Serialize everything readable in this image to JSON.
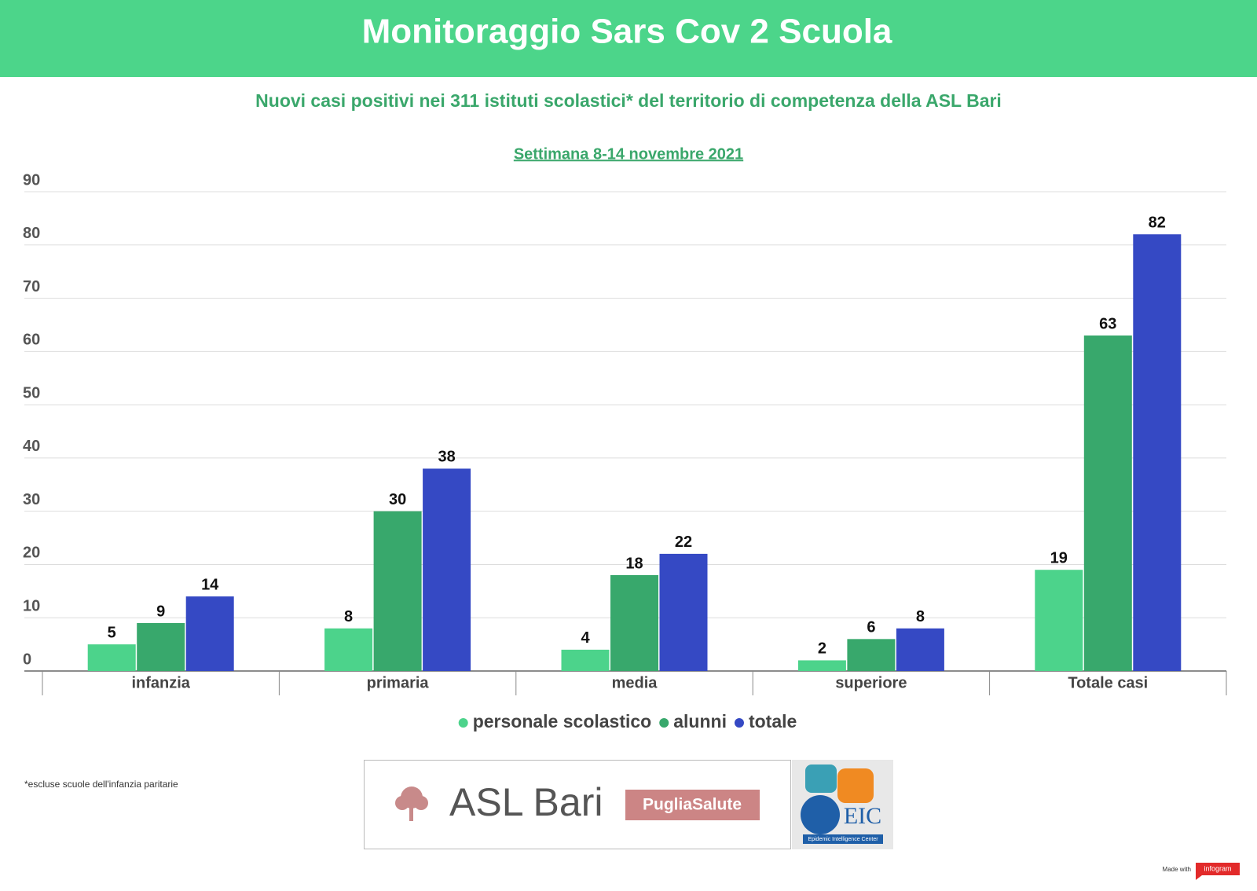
{
  "chart_data": {
    "type": "bar",
    "title": "Monitoraggio Sars Cov 2 Scuola",
    "subtitle": "Nuovi casi positivi nei 311 istituti scolastici* del territorio di competenza della ASL Bari",
    "period": "Settimana 8-14 novembre 2021",
    "categories": [
      "infanzia",
      "primaria",
      "media",
      "superiore",
      "Totale casi"
    ],
    "series": [
      {
        "name": "personale scolastico",
        "color": "#4cd38b",
        "values": [
          5,
          8,
          4,
          2,
          19
        ]
      },
      {
        "name": "alunni",
        "color": "#38a86c",
        "values": [
          9,
          30,
          18,
          6,
          63
        ]
      },
      {
        "name": "totale",
        "color": "#3549c4",
        "values": [
          14,
          38,
          22,
          8,
          82
        ]
      }
    ],
    "ylim": [
      0,
      90
    ],
    "yticks": [
      0,
      10,
      20,
      30,
      40,
      50,
      60,
      70,
      80,
      90
    ],
    "grid": true,
    "legend": "bottom"
  },
  "footer": {
    "note": "*escluse scuole dell'infanzia paritarie",
    "logo_asl": "ASL Bari",
    "logo_puglia": "PugliaSalute",
    "logo_eic": "EIC",
    "logo_eic_caption": "Epidemic Intelligence Center",
    "made_with": "Made with",
    "brand": "infogram"
  }
}
